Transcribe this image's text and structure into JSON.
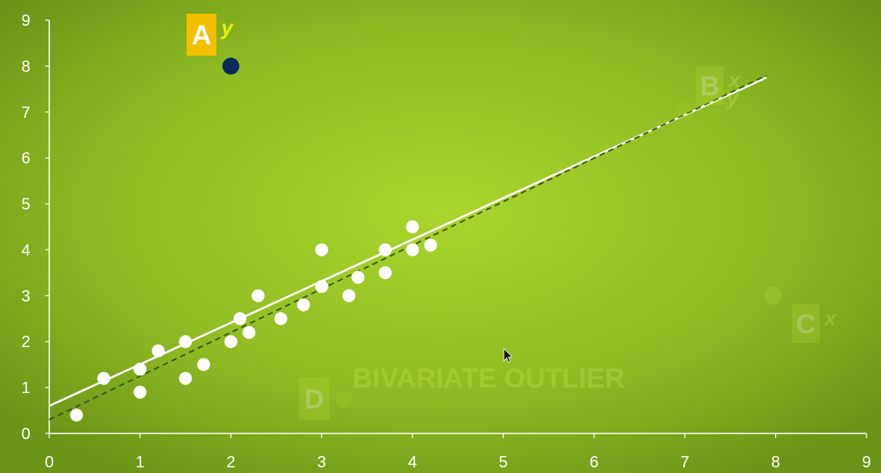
{
  "chart_data": {
    "type": "scatter",
    "title": "",
    "xlabel": "",
    "ylabel": "",
    "xlim": [
      0,
      9
    ],
    "ylim": [
      0,
      9
    ],
    "x_ticks": [
      "0",
      "1",
      "2",
      "3",
      "4",
      "5",
      "6",
      "7",
      "8",
      "9"
    ],
    "y_ticks": [
      "0",
      "1",
      "2",
      "3",
      "4",
      "5",
      "6",
      "7",
      "8",
      "9"
    ],
    "grid": false,
    "points": [
      {
        "x": 0.3,
        "y": 0.4
      },
      {
        "x": 0.6,
        "y": 1.2
      },
      {
        "x": 1.0,
        "y": 0.9
      },
      {
        "x": 1.0,
        "y": 1.4
      },
      {
        "x": 1.2,
        "y": 1.8
      },
      {
        "x": 1.5,
        "y": 1.2
      },
      {
        "x": 1.5,
        "y": 2.0
      },
      {
        "x": 1.7,
        "y": 1.5
      },
      {
        "x": 2.0,
        "y": 2.0
      },
      {
        "x": 2.1,
        "y": 2.5
      },
      {
        "x": 2.2,
        "y": 2.2
      },
      {
        "x": 2.3,
        "y": 3.0
      },
      {
        "x": 2.55,
        "y": 2.5
      },
      {
        "x": 2.8,
        "y": 2.8
      },
      {
        "x": 3.0,
        "y": 3.2
      },
      {
        "x": 3.0,
        "y": 4.0
      },
      {
        "x": 3.3,
        "y": 3.0
      },
      {
        "x": 3.4,
        "y": 3.4
      },
      {
        "x": 3.7,
        "y": 3.5
      },
      {
        "x": 3.7,
        "y": 4.0
      },
      {
        "x": 4.0,
        "y": 4.0
      },
      {
        "x": 4.0,
        "y": 4.5
      },
      {
        "x": 4.2,
        "y": 4.1
      }
    ],
    "outliers": [
      {
        "label": "A",
        "superscript": "y",
        "x": 2.0,
        "y": 8.0,
        "color": "#0d2a5e",
        "faded": false
      },
      {
        "label": "B",
        "superscript": "x",
        "superscript2": "y",
        "x": 7.0,
        "y": 7.0,
        "color": "#a7cf2a",
        "faded": true
      },
      {
        "label": "C",
        "superscript": "x",
        "x": 7.97,
        "y": 3.0,
        "color": "#b8d84a",
        "faded": true
      },
      {
        "label": "D",
        "x": 3.25,
        "y": 0.75,
        "color": "#a7cf2a",
        "faded": true
      }
    ],
    "annotation": "BIVARIATE OUTLIER",
    "fit_lines": [
      {
        "style": "solid",
        "color": "#ffffff",
        "from": [
          0,
          0.6
        ],
        "to": [
          7.9,
          7.75
        ]
      },
      {
        "style": "dashed",
        "color": "#3f5a12",
        "from": [
          0,
          0.3
        ],
        "to": [
          7.9,
          7.8
        ]
      }
    ]
  },
  "colors": {
    "background_center": "#a7d22b",
    "background_edge": "#6f961b",
    "points": "#ffffff",
    "label_box": "#f2c000"
  }
}
